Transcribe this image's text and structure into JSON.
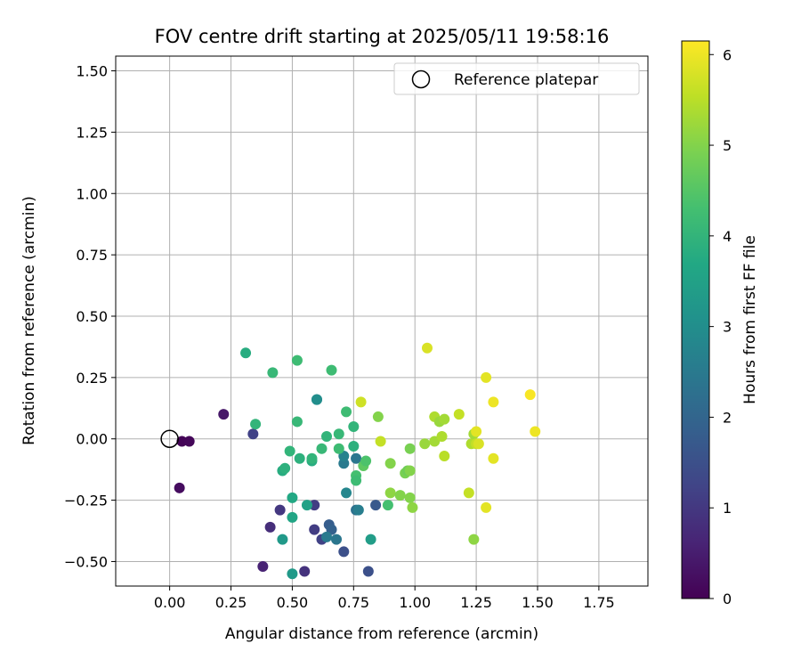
{
  "chart_data": {
    "type": "scatter",
    "title": "FOV centre drift starting at 2025/05/11 19:58:16",
    "xlabel": "Angular distance from reference (arcmin)",
    "ylabel": "Rotation from reference (arcmin)",
    "xlim": [
      -0.22,
      1.95
    ],
    "ylim": [
      -0.6,
      1.56
    ],
    "xticks": [
      0.0,
      0.25,
      0.5,
      0.75,
      1.0,
      1.25,
      1.5,
      1.75
    ],
    "xtick_labels": [
      "0.00",
      "0.25",
      "0.50",
      "0.75",
      "1.00",
      "1.25",
      "1.50",
      "1.75"
    ],
    "yticks": [
      -0.5,
      -0.25,
      0.0,
      0.25,
      0.5,
      0.75,
      1.0,
      1.25,
      1.5
    ],
    "ytick_labels": [
      "−0.50",
      "−0.25",
      "0.00",
      "0.25",
      "0.50",
      "0.75",
      "1.00",
      "1.25",
      "1.50"
    ],
    "grid": true,
    "colormap": "viridis",
    "colorbar": {
      "label": "Hours from first FF file",
      "range": [
        0,
        6.15
      ],
      "ticks": [
        0,
        1,
        2,
        3,
        4,
        5,
        6
      ],
      "tick_labels": [
        "0",
        "1",
        "2",
        "3",
        "4",
        "5",
        "6"
      ]
    },
    "legend": {
      "position": "top-right",
      "entries": [
        "Reference platepar"
      ]
    },
    "reference_point": {
      "x": 0.0,
      "y": 0.0
    },
    "points": [
      {
        "x": 0.05,
        "y": -0.01,
        "c": 0.05
      },
      {
        "x": 0.08,
        "y": -0.01,
        "c": 0.1
      },
      {
        "x": 0.04,
        "y": -0.2,
        "c": 0.2
      },
      {
        "x": 0.22,
        "y": 0.1,
        "c": 0.4
      },
      {
        "x": 0.34,
        "y": 0.02,
        "c": 1.2
      },
      {
        "x": 0.38,
        "y": -0.52,
        "c": 0.6
      },
      {
        "x": 0.41,
        "y": -0.36,
        "c": 0.8
      },
      {
        "x": 0.45,
        "y": -0.29,
        "c": 1.0
      },
      {
        "x": 0.55,
        "y": -0.54,
        "c": 0.9
      },
      {
        "x": 0.59,
        "y": -0.27,
        "c": 1.1
      },
      {
        "x": 0.59,
        "y": -0.37,
        "c": 1.1
      },
      {
        "x": 0.62,
        "y": -0.41,
        "c": 1.2
      },
      {
        "x": 0.65,
        "y": -0.35,
        "c": 1.8
      },
      {
        "x": 0.66,
        "y": -0.37,
        "c": 1.9
      },
      {
        "x": 0.71,
        "y": -0.46,
        "c": 1.5
      },
      {
        "x": 0.81,
        "y": -0.54,
        "c": 1.5
      },
      {
        "x": 0.84,
        "y": -0.27,
        "c": 1.7
      },
      {
        "x": 0.76,
        "y": -0.29,
        "c": 2.3
      },
      {
        "x": 0.68,
        "y": -0.41,
        "c": 2.4
      },
      {
        "x": 0.77,
        "y": -0.29,
        "c": 2.6
      },
      {
        "x": 0.64,
        "y": -0.4,
        "c": 2.5
      },
      {
        "x": 0.72,
        "y": -0.22,
        "c": 2.8
      },
      {
        "x": 0.71,
        "y": -0.1,
        "c": 2.5
      },
      {
        "x": 0.71,
        "y": -0.07,
        "c": 2.7
      },
      {
        "x": 0.76,
        "y": -0.08,
        "c": 2.4
      },
      {
        "x": 0.6,
        "y": 0.16,
        "c": 2.8
      },
      {
        "x": 0.6,
        "y": 0.16,
        "c": 3.0
      },
      {
        "x": 0.5,
        "y": -0.55,
        "c": 3.3
      },
      {
        "x": 0.46,
        "y": -0.41,
        "c": 3.3
      },
      {
        "x": 0.82,
        "y": -0.41,
        "c": 3.4
      },
      {
        "x": 0.5,
        "y": -0.32,
        "c": 3.6
      },
      {
        "x": 0.56,
        "y": -0.27,
        "c": 3.5
      },
      {
        "x": 0.5,
        "y": -0.24,
        "c": 3.7
      },
      {
        "x": 0.46,
        "y": -0.13,
        "c": 3.8
      },
      {
        "x": 0.47,
        "y": -0.12,
        "c": 3.9
      },
      {
        "x": 0.49,
        "y": -0.05,
        "c": 4.0
      },
      {
        "x": 0.53,
        "y": -0.08,
        "c": 3.9
      },
      {
        "x": 0.58,
        "y": -0.09,
        "c": 3.8
      },
      {
        "x": 0.58,
        "y": -0.08,
        "c": 4.0
      },
      {
        "x": 0.62,
        "y": -0.04,
        "c": 4.1
      },
      {
        "x": 0.64,
        "y": 0.01,
        "c": 4.0
      },
      {
        "x": 0.69,
        "y": -0.04,
        "c": 4.2
      },
      {
        "x": 0.69,
        "y": 0.02,
        "c": 4.1
      },
      {
        "x": 0.75,
        "y": 0.05,
        "c": 4.0
      },
      {
        "x": 0.75,
        "y": -0.03,
        "c": 3.9
      },
      {
        "x": 0.76,
        "y": -0.15,
        "c": 4.3
      },
      {
        "x": 0.76,
        "y": -0.17,
        "c": 4.2
      },
      {
        "x": 0.79,
        "y": -0.11,
        "c": 4.6
      },
      {
        "x": 0.8,
        "y": -0.09,
        "c": 4.4
      },
      {
        "x": 0.89,
        "y": -0.27,
        "c": 4.3
      },
      {
        "x": 0.72,
        "y": 0.11,
        "c": 4.2
      },
      {
        "x": 0.52,
        "y": 0.07,
        "c": 4.1
      },
      {
        "x": 0.35,
        "y": 0.06,
        "c": 4.0
      },
      {
        "x": 0.31,
        "y": 0.35,
        "c": 3.8
      },
      {
        "x": 0.42,
        "y": 0.27,
        "c": 4.1
      },
      {
        "x": 0.52,
        "y": 0.32,
        "c": 4.2
      },
      {
        "x": 0.66,
        "y": 0.28,
        "c": 4.2
      },
      {
        "x": 0.78,
        "y": 0.15,
        "c": 5.7
      },
      {
        "x": 0.85,
        "y": 0.09,
        "c": 5.0
      },
      {
        "x": 0.86,
        "y": -0.01,
        "c": 5.6
      },
      {
        "x": 0.9,
        "y": -0.1,
        "c": 5.0
      },
      {
        "x": 0.9,
        "y": -0.22,
        "c": 5.1
      },
      {
        "x": 0.94,
        "y": -0.23,
        "c": 5.0
      },
      {
        "x": 0.96,
        "y": -0.14,
        "c": 4.9
      },
      {
        "x": 0.97,
        "y": -0.13,
        "c": 4.8
      },
      {
        "x": 0.98,
        "y": -0.04,
        "c": 4.9
      },
      {
        "x": 0.98,
        "y": -0.24,
        "c": 5.0
      },
      {
        "x": 0.99,
        "y": -0.28,
        "c": 5.1
      },
      {
        "x": 0.98,
        "y": -0.13,
        "c": 5.0
      },
      {
        "x": 1.04,
        "y": -0.02,
        "c": 5.2
      },
      {
        "x": 1.05,
        "y": 0.37,
        "c": 5.8
      },
      {
        "x": 1.08,
        "y": -0.01,
        "c": 5.3
      },
      {
        "x": 1.08,
        "y": 0.09,
        "c": 5.4
      },
      {
        "x": 1.1,
        "y": 0.07,
        "c": 5.2
      },
      {
        "x": 1.12,
        "y": 0.08,
        "c": 5.3
      },
      {
        "x": 1.11,
        "y": 0.01,
        "c": 5.4
      },
      {
        "x": 1.12,
        "y": -0.07,
        "c": 5.5
      },
      {
        "x": 1.18,
        "y": 0.1,
        "c": 5.6
      },
      {
        "x": 1.22,
        "y": -0.22,
        "c": 5.6
      },
      {
        "x": 1.23,
        "y": -0.02,
        "c": 5.4
      },
      {
        "x": 1.24,
        "y": 0.02,
        "c": 5.3
      },
      {
        "x": 1.25,
        "y": -0.02,
        "c": 5.6
      },
      {
        "x": 1.26,
        "y": -0.02,
        "c": 5.8
      },
      {
        "x": 1.25,
        "y": 0.03,
        "c": 5.9
      },
      {
        "x": 1.24,
        "y": -0.41,
        "c": 5.1
      },
      {
        "x": 1.29,
        "y": 0.25,
        "c": 5.9
      },
      {
        "x": 1.29,
        "y": -0.28,
        "c": 5.9
      },
      {
        "x": 1.32,
        "y": 0.15,
        "c": 6.0
      },
      {
        "x": 1.32,
        "y": -0.08,
        "c": 5.9
      },
      {
        "x": 1.47,
        "y": 0.18,
        "c": 6.1
      },
      {
        "x": 1.49,
        "y": 0.03,
        "c": 6.0
      }
    ]
  }
}
